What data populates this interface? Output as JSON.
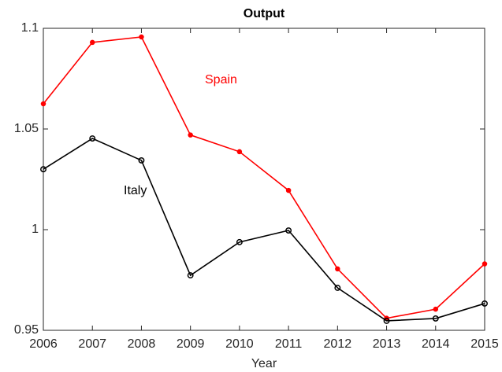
{
  "chart_data": {
    "type": "line",
    "title": "Output",
    "xlabel": "Year",
    "x": [
      2006,
      2007,
      2008,
      2009,
      2010,
      2011,
      2012,
      2013,
      2014,
      2015
    ],
    "series": [
      {
        "name": "Spain",
        "color": "#ff0000",
        "values": [
          1.0625,
          1.093,
          1.0957,
          1.047,
          1.0387,
          1.0195,
          0.9805,
          0.956,
          0.9605,
          0.983
        ]
      },
      {
        "name": "Italy",
        "color": "#000000",
        "values": [
          1.03,
          1.0453,
          1.0344,
          0.9773,
          0.9938,
          0.9996,
          0.9711,
          0.9547,
          0.9559,
          0.9633
        ]
      }
    ],
    "xlim": [
      2006,
      2015
    ],
    "xticks": [
      2006,
      2007,
      2008,
      2009,
      2010,
      2011,
      2012,
      2013,
      2014,
      2015
    ],
    "ylim": [
      0.95,
      1.1
    ],
    "yticks": [
      0.95,
      1,
      1.05,
      1.1
    ],
    "grid": false
  }
}
